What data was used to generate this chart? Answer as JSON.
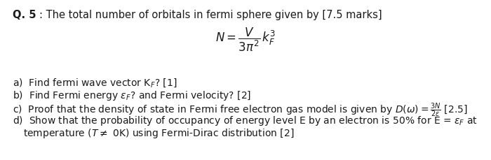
{
  "background_color": "#ffffff",
  "title_bold": "Q. 5",
  "title_rest": ": The total number of orbitals in fermi sphere given by [7.5 marks]",
  "font_size_title": 10.5,
  "font_size_body": 10.0,
  "font_size_formula": 12,
  "text_color": "#1a1a1a",
  "fig_width": 7.0,
  "fig_height": 2.29,
  "dpi": 100
}
